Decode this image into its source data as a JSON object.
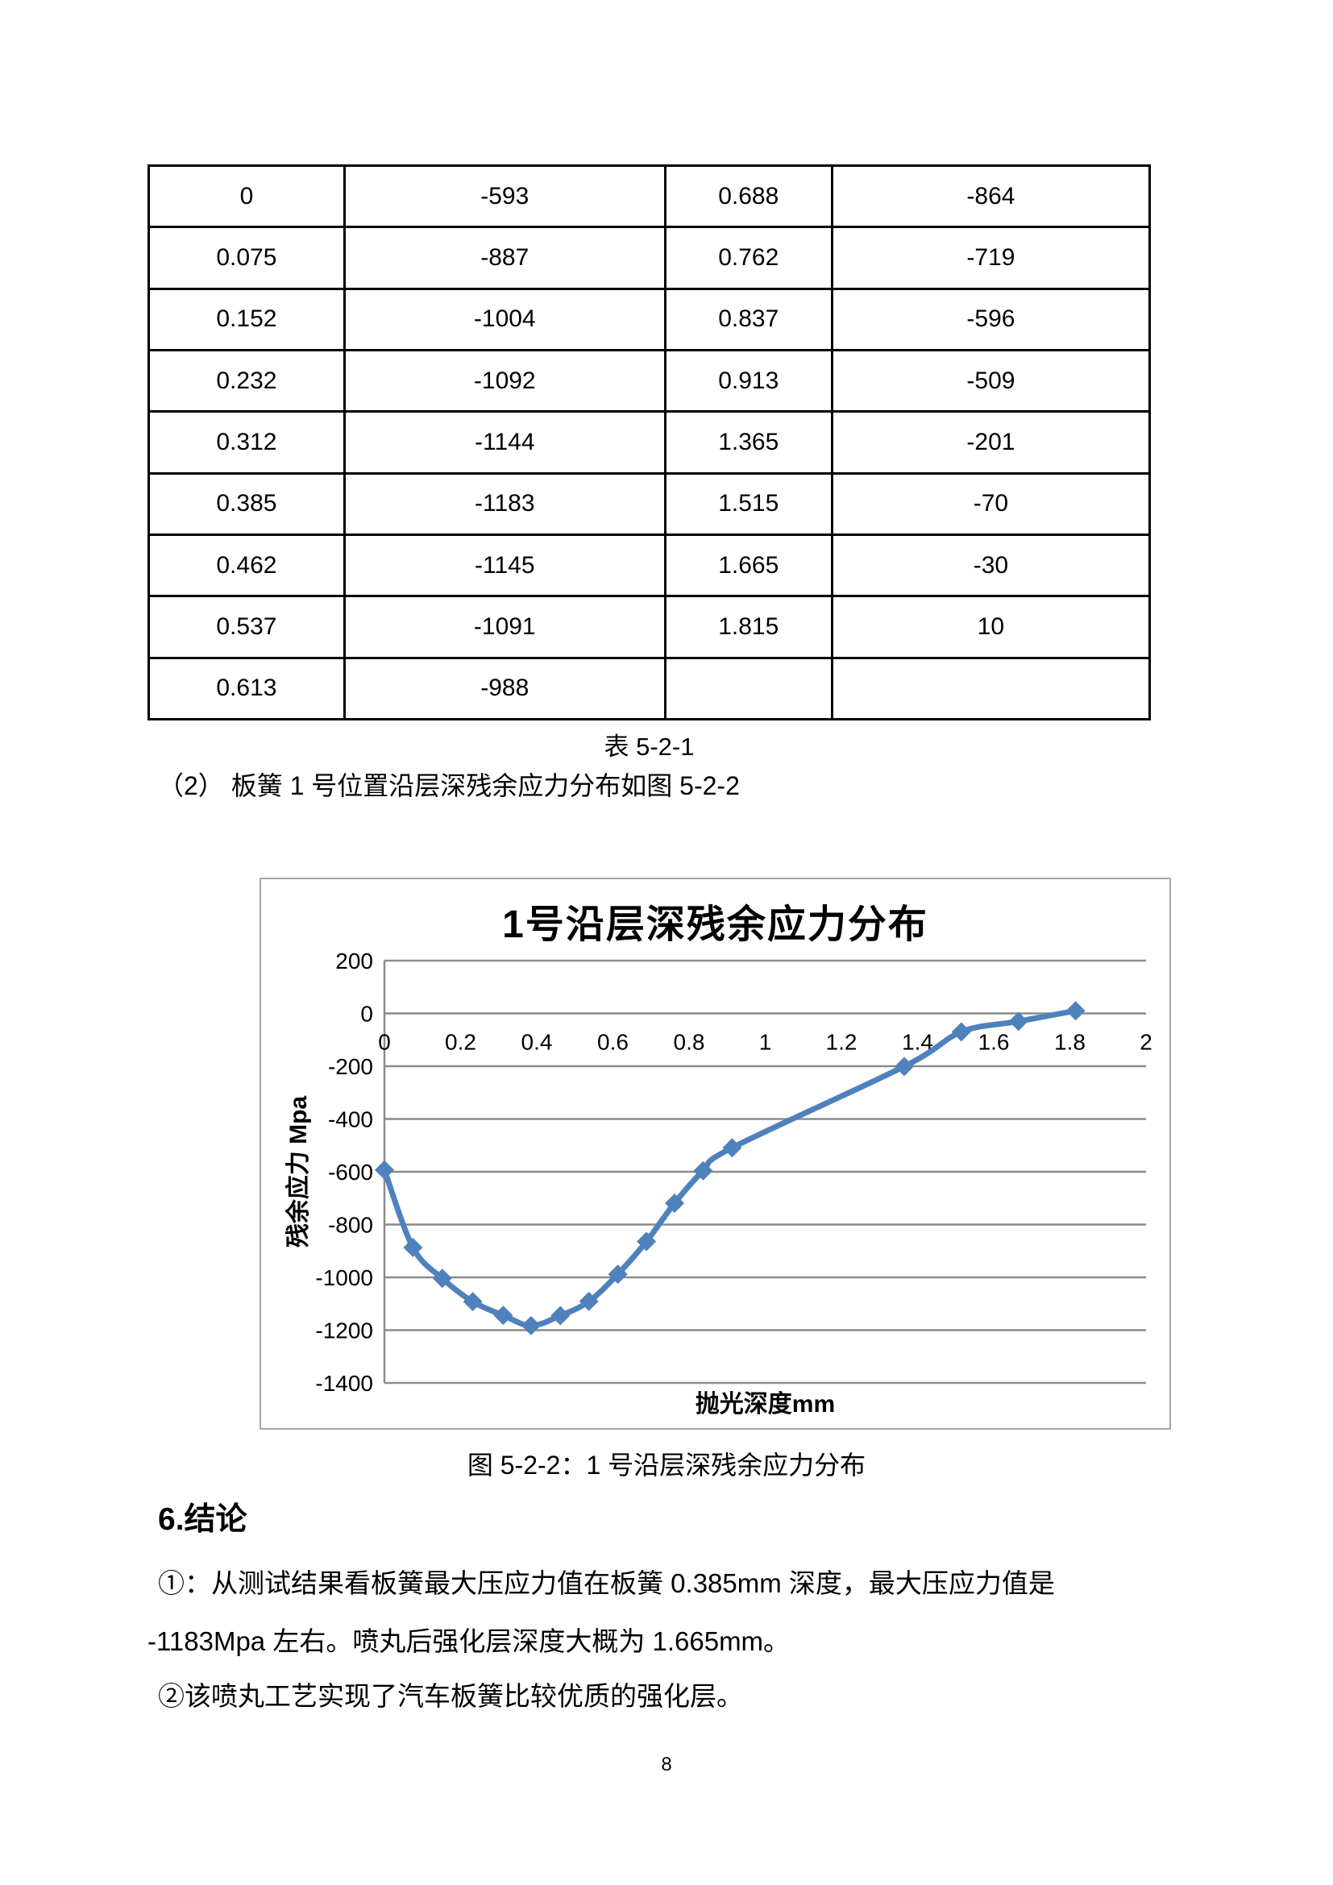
{
  "table": {
    "caption": "表 5-2-1",
    "rows": [
      [
        "0",
        "-593",
        "0.688",
        "-864"
      ],
      [
        "0.075",
        "-887",
        "0.762",
        "-719"
      ],
      [
        "0.152",
        "-1004",
        "0.837",
        "-596"
      ],
      [
        "0.232",
        "-1092",
        "0.913",
        "-509"
      ],
      [
        "0.312",
        "-1144",
        "1.365",
        "-201"
      ],
      [
        "0.385",
        "-1183",
        "1.515",
        "-70"
      ],
      [
        "0.462",
        "-1145",
        "1.665",
        "-30"
      ],
      [
        "0.537",
        "-1091",
        "1.815",
        "10"
      ],
      [
        "0.613",
        "-988",
        "",
        ""
      ]
    ]
  },
  "paragraph_2": "（2） 板簧 1 号位置沿层深残余应力分布如图 5-2-2",
  "chart_data": {
    "type": "line",
    "title": "1号沿层深残余应力分布",
    "xlabel": "抛光深度mm",
    "ylabel": "残余应力 Mpa",
    "x": [
      0,
      0.075,
      0.152,
      0.232,
      0.312,
      0.385,
      0.462,
      0.537,
      0.613,
      0.688,
      0.762,
      0.837,
      0.913,
      1.365,
      1.515,
      1.665,
      1.815
    ],
    "y": [
      -593,
      -887,
      -1004,
      -1092,
      -1144,
      -1183,
      -1145,
      -1091,
      -988,
      -864,
      -719,
      -596,
      -509,
      -201,
      -70,
      -30,
      10
    ],
    "xlim": [
      0,
      2
    ],
    "ylim": [
      -1400,
      200
    ],
    "x_tick_labels": [
      "0",
      "0.2",
      "0.4",
      "0.6",
      "0.8",
      "1",
      "1.2",
      "1.4",
      "1.6",
      "1.8",
      "2"
    ],
    "y_tick_labels": [
      "200",
      "0",
      "-200",
      "-400",
      "-600",
      "-800",
      "-1000",
      "-1200",
      "-1400"
    ],
    "grid": "horizontal",
    "legend_position": "none",
    "marker": "diamond",
    "line_color": "#4F81BD",
    "grid_color": "#8C8C8C",
    "frame_color": "#A6A6A6"
  },
  "figure_caption": "图 5-2-2：1 号沿层深残余应力分布",
  "section_heading": "6.结论",
  "conclusion": {
    "line1": "①：从测试结果看板簧最大压应力值在板簧 0.385mm 深度，最大压应力值是",
    "line2": "-1183Mpa 左右。喷丸后强化层深度大概为 1.665mm。",
    "line3": "②该喷丸工艺实现了汽车板簧比较优质的强化层。"
  },
  "page_number": "8"
}
